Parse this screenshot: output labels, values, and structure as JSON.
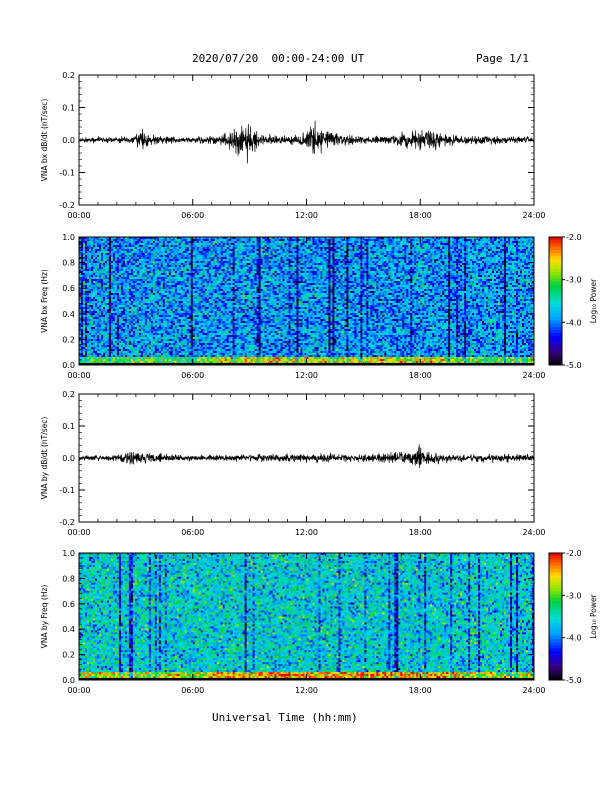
{
  "header": {
    "title": "2020/07/20  00:00-24:00 UT",
    "page": "Page 1/1"
  },
  "xaxis_title": "Universal Time (hh:mm)",
  "chart_data": [
    {
      "id": "bx-waveform",
      "type": "line",
      "ylabel": "VNA bx dB/dt (nT/sec)",
      "xlim": [
        0,
        24
      ],
      "ylim": [
        -0.2,
        0.2
      ],
      "yticks": [
        "0.2",
        "0.1",
        "0.0",
        "-0.1",
        "-0.2"
      ],
      "xticks": [
        "00:00",
        "06:00",
        "12:00",
        "18:00",
        "24:00"
      ],
      "color": "#000000",
      "baseline": 0.0,
      "envelope": {
        "x": [
          0,
          2,
          3,
          3.3,
          3.8,
          5,
          6,
          7.5,
          8.5,
          8.9,
          9.4,
          10.5,
          11.5,
          12.0,
          12.4,
          12.9,
          13.5,
          14.5,
          15.5,
          16.5,
          17.5,
          18.2,
          19,
          20,
          21,
          22,
          23,
          24
        ],
        "y": [
          0.006,
          0.007,
          0.012,
          0.04,
          0.012,
          0.008,
          0.008,
          0.012,
          0.035,
          0.05,
          0.02,
          0.01,
          0.012,
          0.025,
          0.055,
          0.03,
          0.02,
          0.012,
          0.01,
          0.012,
          0.025,
          0.03,
          0.02,
          0.01,
          0.01,
          0.01,
          0.008,
          0.006
        ]
      }
    },
    {
      "id": "bx-spectrogram",
      "type": "heatmap",
      "ylabel": "VNA bx Freq (Hz)",
      "xlim": [
        0,
        24
      ],
      "ylim": [
        0.0,
        1.0
      ],
      "yticks": [
        "1.0",
        "0.8",
        "0.6",
        "0.4",
        "0.2",
        "0.0"
      ],
      "xticks": [
        "00:00",
        "06:00",
        "12:00",
        "18:00",
        "24:00"
      ],
      "colorbar": {
        "label": "Log₁₀ Power",
        "range": [
          -5.0,
          -2.0
        ],
        "ticks": [
          "-2.0",
          "-3.0",
          "-4.0",
          "-5.0"
        ]
      }
    },
    {
      "id": "by-waveform",
      "type": "line",
      "ylabel": "VNA by dB/dt (nT/sec)",
      "xlim": [
        0,
        24
      ],
      "ylim": [
        -0.2,
        0.2
      ],
      "yticks": [
        "0.2",
        "0.1",
        "0.0",
        "-0.1",
        "-0.2"
      ],
      "xticks": [
        "00:00",
        "06:00",
        "12:00",
        "18:00",
        "24:00"
      ],
      "color": "#000000",
      "baseline": 0.0,
      "envelope": {
        "x": [
          0,
          2,
          2.5,
          3,
          3.5,
          5,
          6,
          8,
          10,
          11,
          12,
          12.8,
          13.5,
          15,
          16,
          17,
          17.5,
          18,
          18.5,
          19,
          20,
          22,
          23,
          24
        ],
        "y": [
          0.006,
          0.008,
          0.015,
          0.02,
          0.012,
          0.008,
          0.007,
          0.008,
          0.01,
          0.01,
          0.01,
          0.015,
          0.01,
          0.01,
          0.012,
          0.015,
          0.022,
          0.03,
          0.02,
          0.012,
          0.01,
          0.01,
          0.012,
          0.008
        ]
      }
    },
    {
      "id": "by-spectrogram",
      "type": "heatmap",
      "ylabel": "VNA by Freq (Hz)",
      "xlim": [
        0,
        24
      ],
      "ylim": [
        0.0,
        1.0
      ],
      "yticks": [
        "1.0",
        "0.8",
        "0.6",
        "0.4",
        "0.2",
        "0.0"
      ],
      "xticks": [
        "00:00",
        "06:00",
        "12:00",
        "18:00",
        "24:00"
      ],
      "colorbar": {
        "label": "Log₁₀ Power",
        "range": [
          -5.0,
          -2.0
        ],
        "ticks": [
          "-2.0",
          "-3.0",
          "-4.0",
          "-5.0"
        ]
      }
    }
  ]
}
